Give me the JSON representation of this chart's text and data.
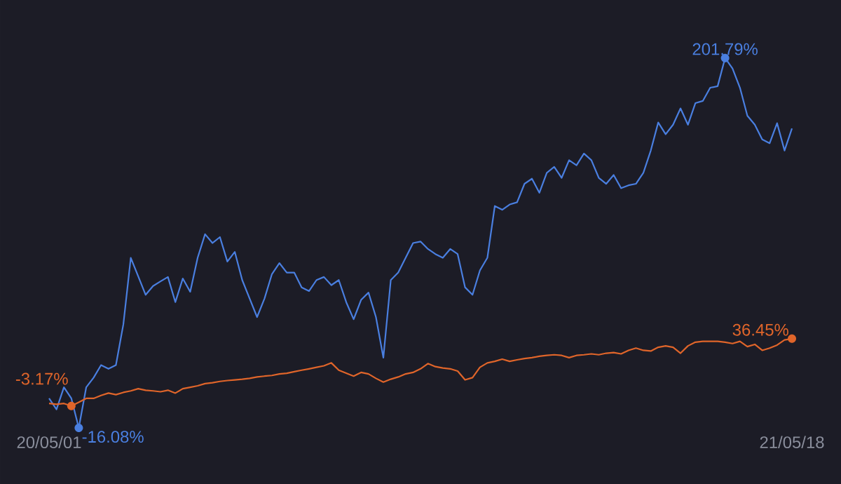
{
  "chart_data": {
    "type": "line",
    "categories": [
      "20/05/01",
      null,
      null,
      null,
      null,
      null,
      null,
      null,
      null,
      null,
      null,
      null,
      null,
      null,
      null,
      null,
      null,
      null,
      null,
      null,
      null,
      null,
      null,
      null,
      null,
      null,
      null,
      null,
      null,
      null,
      null,
      null,
      null,
      null,
      null,
      null,
      null,
      null,
      null,
      null,
      null,
      null,
      null,
      null,
      null,
      null,
      null,
      null,
      null,
      null,
      null,
      null,
      null,
      null,
      null,
      null,
      null,
      null,
      null,
      null,
      null,
      null,
      null,
      null,
      null,
      null,
      null,
      null,
      null,
      null,
      null,
      null,
      null,
      null,
      null,
      null,
      null,
      null,
      null,
      null,
      null,
      null,
      null,
      null,
      null,
      null,
      null,
      null,
      null,
      null,
      null,
      null,
      null,
      null,
      null,
      null,
      null,
      null,
      null,
      null,
      "21/05/18"
    ],
    "tick_labels": "x",
    "series": [
      {
        "color": "#4a7fe0",
        "values": [
          1.3,
          -5.2,
          7.8,
          1.3,
          -16.08,
          7.8,
          13.5,
          20.9,
          18.7,
          20.9,
          44.9,
          84.1,
          73.2,
          62.3,
          67.5,
          70.2,
          72.8,
          58.0,
          71.9,
          64.1,
          84.1,
          98.0,
          92.8,
          96.3,
          81.9,
          87.6,
          71.0,
          60.1,
          49.2,
          60.1,
          74.5,
          81.0,
          75.4,
          75.4,
          66.7,
          64.5,
          71.0,
          72.8,
          68.0,
          71.0,
          58.0,
          47.9,
          59.3,
          63.6,
          49.2,
          25.3,
          71.0,
          75.4,
          84.1,
          92.8,
          93.7,
          89.3,
          86.3,
          84.1,
          89.3,
          86.3,
          66.7,
          62.3,
          76.7,
          84.1,
          114.6,
          112.4,
          115.5,
          116.8,
          127.7,
          130.7,
          122.4,
          134.2,
          137.7,
          131.2,
          141.6,
          138.6,
          145.5,
          141.6,
          131.2,
          127.7,
          132.9,
          125.1,
          126.8,
          127.7,
          134.2,
          147.3,
          163.8,
          156.9,
          162.5,
          172.1,
          162.5,
          175.2,
          176.5,
          184.3,
          185.2,
          201.79,
          195.6,
          184.3,
          167.8,
          162.5,
          153.8,
          151.6,
          163.4,
          147.3,
          160.3
        ],
        "value_labels": [
          null,
          null,
          null,
          null,
          "-16.08%",
          null,
          null,
          null,
          null,
          null,
          null,
          null,
          null,
          null,
          null,
          null,
          null,
          null,
          null,
          null,
          null,
          null,
          null,
          null,
          null,
          null,
          null,
          null,
          null,
          null,
          null,
          null,
          null,
          null,
          null,
          null,
          null,
          null,
          null,
          null,
          null,
          null,
          null,
          null,
          null,
          null,
          null,
          null,
          null,
          null,
          null,
          null,
          null,
          null,
          null,
          null,
          null,
          null,
          null,
          null,
          null,
          null,
          null,
          null,
          null,
          null,
          null,
          null,
          null,
          null,
          null,
          null,
          null,
          null,
          null,
          null,
          null,
          null,
          null,
          null,
          null,
          null,
          null,
          null,
          null,
          null,
          null,
          null,
          null,
          null,
          null,
          "201.79%",
          null,
          null,
          null,
          null,
          null,
          null,
          null,
          null,
          null
        ]
      },
      {
        "color": "#e0652a",
        "values": [
          -1.7,
          -2.2,
          -1.7,
          -3.17,
          -1.0,
          1.3,
          1.3,
          3.0,
          4.4,
          3.5,
          4.8,
          5.7,
          7.0,
          6.1,
          5.7,
          5.2,
          6.1,
          4.4,
          7.0,
          7.8,
          8.7,
          10.0,
          10.5,
          11.3,
          11.8,
          12.2,
          12.6,
          13.1,
          13.9,
          14.4,
          14.8,
          15.7,
          16.1,
          17.0,
          17.9,
          18.7,
          19.6,
          20.5,
          22.2,
          17.9,
          16.1,
          14.4,
          16.6,
          15.7,
          13.1,
          10.9,
          12.6,
          13.9,
          15.7,
          16.6,
          18.7,
          21.8,
          20.0,
          19.2,
          18.7,
          17.4,
          12.2,
          13.5,
          19.6,
          22.2,
          23.1,
          24.4,
          23.1,
          24.0,
          24.8,
          25.3,
          26.1,
          26.6,
          27.0,
          26.6,
          25.3,
          26.6,
          27.0,
          27.5,
          27.0,
          27.9,
          28.3,
          27.5,
          29.6,
          30.9,
          29.6,
          29.2,
          31.4,
          32.2,
          31.4,
          27.9,
          32.2,
          34.4,
          34.9,
          34.9,
          34.9,
          34.4,
          33.6,
          34.9,
          31.8,
          33.1,
          29.6,
          30.9,
          32.7,
          35.7,
          36.45
        ],
        "value_labels": [
          null,
          null,
          null,
          "-3.17%",
          null,
          null,
          null,
          null,
          null,
          null,
          null,
          null,
          null,
          null,
          null,
          null,
          null,
          null,
          null,
          null,
          null,
          null,
          null,
          null,
          null,
          null,
          null,
          null,
          null,
          null,
          null,
          null,
          null,
          null,
          null,
          null,
          null,
          null,
          null,
          null,
          null,
          null,
          null,
          null,
          null,
          null,
          null,
          null,
          null,
          null,
          null,
          null,
          null,
          null,
          null,
          null,
          null,
          null,
          null,
          null,
          null,
          null,
          null,
          null,
          null,
          null,
          null,
          null,
          null,
          null,
          null,
          null,
          null,
          null,
          null,
          null,
          null,
          null,
          null,
          null,
          null,
          null,
          null,
          null,
          null,
          null,
          null,
          null,
          null,
          null,
          null,
          null,
          null,
          null,
          null,
          null,
          null,
          null,
          null,
          null,
          "36.45%"
        ]
      }
    ]
  }
}
